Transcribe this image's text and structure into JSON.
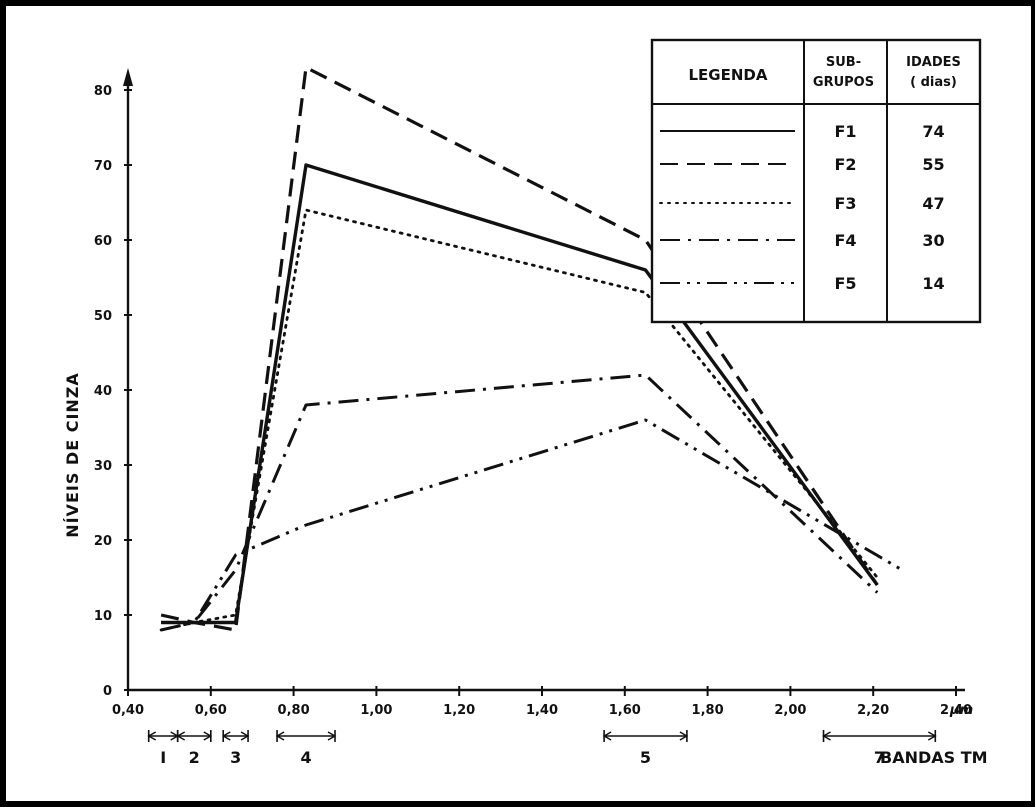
{
  "chart_data": {
    "type": "line",
    "ylabel": "NÍVEIS DE CINZA",
    "xunit": "μm",
    "band_caption": "BANDAS TM",
    "xlim": [
      0.4,
      2.6
    ],
    "ylim": [
      0,
      85
    ],
    "x_ticks": [
      0.4,
      0.6,
      0.8,
      1.0,
      1.2,
      1.4,
      1.6,
      1.8,
      2.0,
      2.2,
      2.4
    ],
    "x_tick_labels": [
      "0,40",
      "0,60",
      "0,80",
      "1,00",
      "1,20",
      "1,40",
      "1,60",
      "1,80",
      "2,00",
      "2,20",
      "2,40"
    ],
    "y_ticks": [
      0,
      10,
      20,
      30,
      40,
      50,
      60,
      70,
      80
    ],
    "y_tick_labels": [
      "0",
      "10",
      "20",
      "30",
      "40",
      "50",
      "60",
      "70",
      "80"
    ],
    "bands": [
      {
        "label": "I",
        "from": 0.45,
        "to": 0.52
      },
      {
        "label": "2",
        "from": 0.52,
        "to": 0.6
      },
      {
        "label": "3",
        "from": 0.63,
        "to": 0.69
      },
      {
        "label": "4",
        "from": 0.76,
        "to": 0.9
      },
      {
        "label": "5",
        "from": 1.55,
        "to": 1.75
      },
      {
        "label": "7",
        "from": 2.08,
        "to": 2.35
      }
    ],
    "series": [
      {
        "name": "F1",
        "age": "74",
        "dash": "solid",
        "x": [
          0.48,
          0.56,
          0.66,
          0.83,
          1.65,
          2.21
        ],
        "y": [
          9,
          9,
          9,
          70,
          56,
          14
        ]
      },
      {
        "name": "F2",
        "age": "55",
        "dash": "dashed",
        "x": [
          0.48,
          0.56,
          0.66,
          0.83,
          1.65,
          2.21
        ],
        "y": [
          10,
          9,
          8,
          83,
          60,
          14
        ]
      },
      {
        "name": "F3",
        "age": "47",
        "dash": "dotted",
        "x": [
          0.48,
          0.56,
          0.66,
          0.83,
          1.65,
          2.21
        ],
        "y": [
          8,
          9,
          10,
          64,
          53,
          15
        ]
      },
      {
        "name": "F4",
        "age": "30",
        "dash": "dashdot",
        "x": [
          0.48,
          0.56,
          0.66,
          0.83,
          1.65,
          2.21
        ],
        "y": [
          9,
          9,
          16,
          38,
          42,
          13
        ]
      },
      {
        "name": "F5",
        "age": "14",
        "dash": "dashdotdot",
        "x": [
          0.48,
          0.56,
          0.66,
          0.83,
          1.65,
          2.27
        ],
        "y": [
          8,
          9,
          18,
          22,
          36,
          16
        ]
      }
    ],
    "legend": {
      "placement": "top-right",
      "headers": [
        "LEGENDA",
        "SUB-GRUPOS",
        "IDADES (dias)"
      ],
      "header_lines": [
        [
          "LEGENDA"
        ],
        [
          "SUB-",
          "GRUPOS"
        ],
        [
          "IDADES",
          "( dias)"
        ]
      ]
    },
    "grid": false
  }
}
